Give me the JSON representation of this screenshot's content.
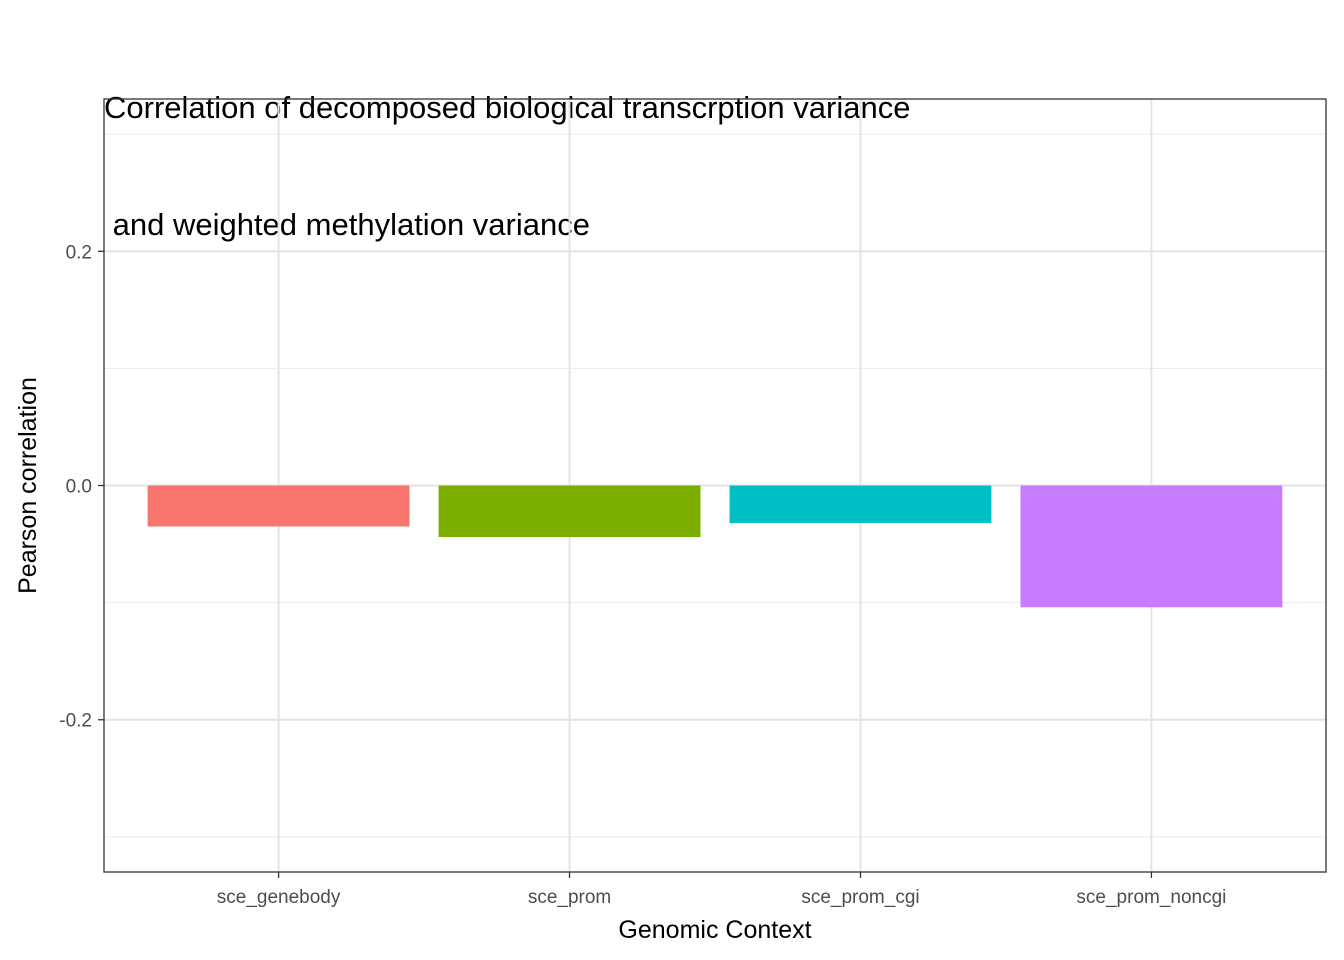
{
  "chart_data": {
    "type": "bar",
    "title_line1": "Correlation of decomposed biological transcrption variance",
    "title_line2": " and weighted methylation variance",
    "xlabel": "Genomic Context",
    "ylabel": "Pearson correlation",
    "categories": [
      "sce_genebody",
      "sce_prom",
      "sce_prom_cgi",
      "sce_prom_noncgi"
    ],
    "values": [
      -0.035,
      -0.044,
      -0.032,
      -0.104
    ],
    "colors": [
      "#F8766D",
      "#7CAE00",
      "#00BFC4",
      "#C77CFF"
    ],
    "ylim": [
      -0.33,
      0.33
    ],
    "yticks": [
      -0.2,
      0.0,
      0.2
    ],
    "ytick_labels": [
      "-0.2",
      "0.0",
      "0.2"
    ],
    "grid": true,
    "legend": "none"
  }
}
